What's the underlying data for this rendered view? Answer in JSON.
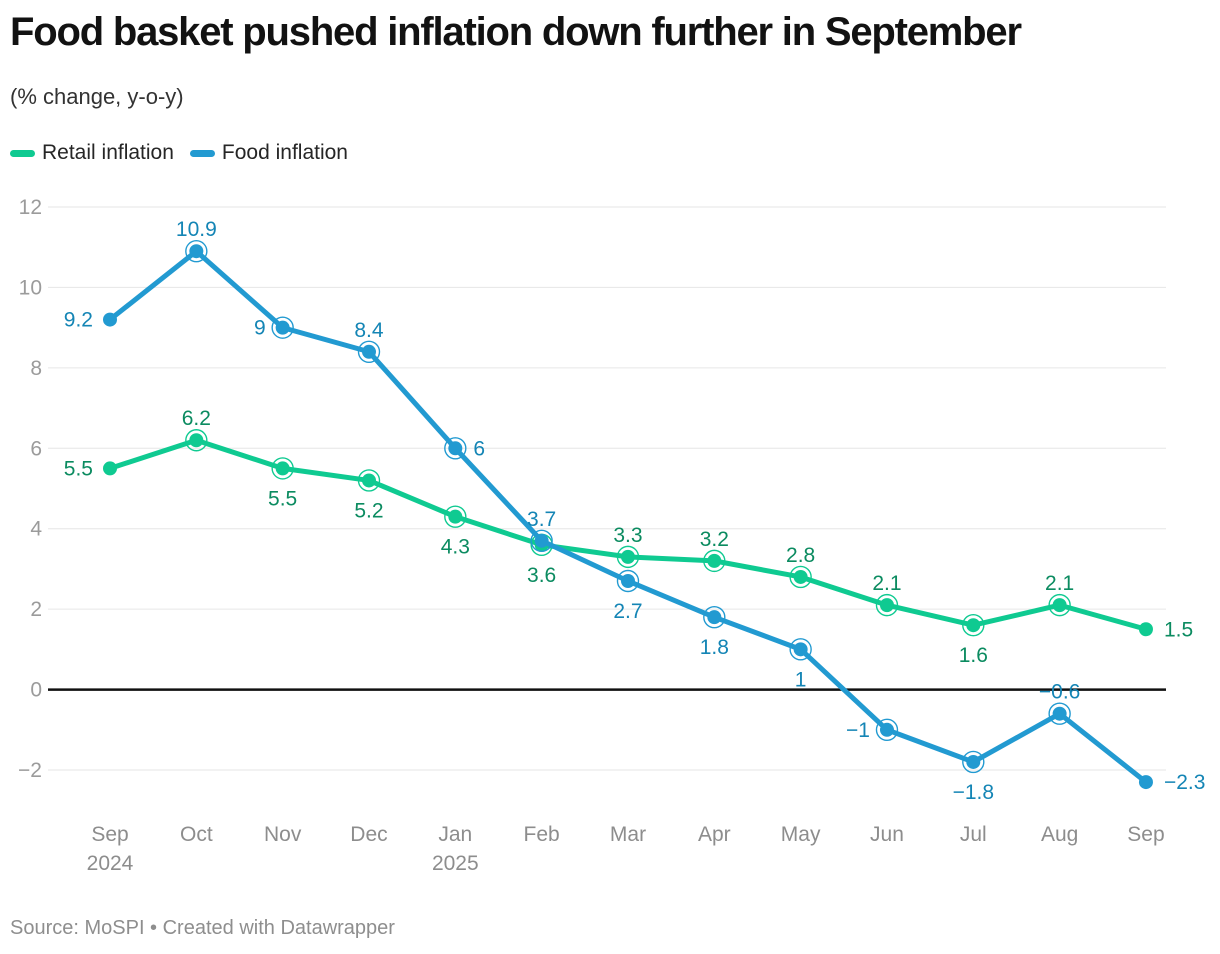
{
  "chart_data": {
    "type": "line",
    "title": "Food basket pushed inflation down further in September",
    "subtitle": "(% change, y-o-y)",
    "categories": [
      "Sep",
      "Oct",
      "Nov",
      "Dec",
      "Jan",
      "Feb",
      "Mar",
      "Apr",
      "May",
      "Jun",
      "Jul",
      "Aug",
      "Sep"
    ],
    "year_labels": [
      {
        "index": 0,
        "year": "2024"
      },
      {
        "index": 4,
        "year": "2025"
      }
    ],
    "series": [
      {
        "name": "Retail inflation",
        "color": "#0fca91",
        "label_color": "#0b8b60",
        "values": [
          5.5,
          6.2,
          5.5,
          5.2,
          4.3,
          3.6,
          3.3,
          3.2,
          2.8,
          2.1,
          1.6,
          2.1,
          1.5
        ],
        "label_positions": [
          "left",
          "above",
          "below",
          "below",
          "below",
          "below",
          "above",
          "above",
          "above",
          "above",
          "below",
          "above",
          "right"
        ]
      },
      {
        "name": "Food inflation",
        "color": "#229ad1",
        "label_color": "#1485b5",
        "values": [
          9.2,
          10.9,
          9,
          8.4,
          6,
          3.7,
          2.7,
          1.8,
          1,
          -1,
          -1.8,
          -0.6,
          -2.3
        ],
        "label_positions": [
          "left",
          "above",
          "left",
          "above",
          "right",
          "above",
          "below",
          "below",
          "below",
          "left",
          "below",
          "above",
          "right"
        ]
      }
    ],
    "xlabel": "",
    "ylabel": "",
    "ylim": [
      -2,
      12
    ],
    "yticks": [
      12,
      10,
      8,
      6,
      4,
      2,
      0,
      -2
    ],
    "zero_line": true,
    "grid": true,
    "legend_position": "top-left",
    "colors": {
      "grid": "#e6e6e6",
      "zero_line": "#111111",
      "y_tick_text": "#9b9b9b",
      "x_tick_text": "#8d8d8d"
    }
  },
  "footer": {
    "source": "Source: MoSPI • Created with Datawrapper"
  }
}
